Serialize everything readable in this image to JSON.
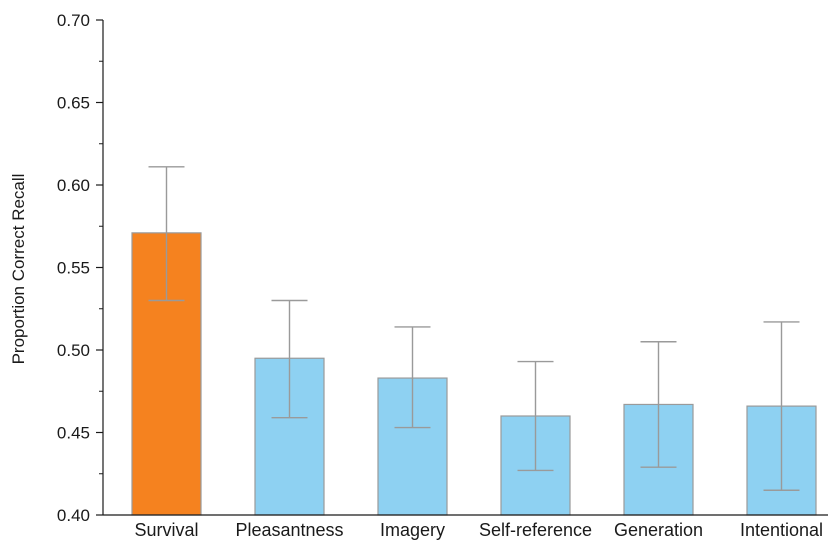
{
  "chart_data": {
    "type": "bar",
    "title": "",
    "xlabel": "",
    "ylabel": "Proportion Correct Recall",
    "ylim": [
      0.4,
      0.7
    ],
    "yticks": [
      "0.40",
      "0.45",
      "0.50",
      "0.55",
      "0.60",
      "0.65",
      "0.70"
    ],
    "categories": [
      "Survival",
      "Pleasantness",
      "Imagery",
      "Self-reference",
      "Generation",
      "Intentional"
    ],
    "values": [
      0.571,
      0.495,
      0.483,
      0.46,
      0.467,
      0.466
    ],
    "error_low": [
      0.53,
      0.459,
      0.453,
      0.427,
      0.429,
      0.415
    ],
    "error_high": [
      0.611,
      0.53,
      0.514,
      0.493,
      0.505,
      0.517
    ],
    "bar_colors": [
      "#f5821f",
      "#8ed1f2",
      "#8ed1f2",
      "#8ed1f2",
      "#8ed1f2",
      "#8ed1f2"
    ],
    "bar_edge_color": "#9a9a9a",
    "errorbar_color": "#9a9a9a",
    "grid": false,
    "legend": "none"
  }
}
